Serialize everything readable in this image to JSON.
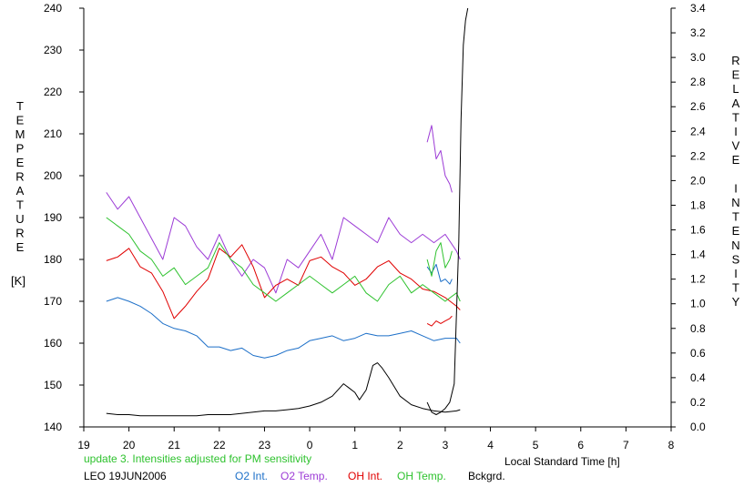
{
  "chart_data": {
    "type": "line",
    "title": "",
    "xlabel": "Local Standard Time [h]",
    "ylabel_left": "TEMPERATURE [K]",
    "ylabel_right": "RELATIVE INTENSITY",
    "ylabel_left_letters": [
      "T",
      "E",
      "M",
      "P",
      "E",
      "R",
      "A",
      "T",
      "U",
      "R",
      "E"
    ],
    "ylabel_left_unit": "[K]",
    "ylabel_right_letters": [
      "R",
      "E",
      "L",
      "A",
      "T",
      "I",
      "V",
      "E",
      "",
      "I",
      "N",
      "T",
      "E",
      "N",
      "S",
      "I",
      "T",
      "Y"
    ],
    "xlim": [
      19,
      32
    ],
    "ylim_left": [
      140,
      240
    ],
    "ylim_right": [
      0,
      3.4
    ],
    "x_tick_labels": [
      "19",
      "20",
      "21",
      "22",
      "23",
      "0",
      "1",
      "2",
      "3",
      "4",
      "5",
      "6",
      "7",
      "8"
    ],
    "y_left_ticks": [
      140,
      150,
      160,
      170,
      180,
      190,
      200,
      210,
      220,
      230,
      240
    ],
    "y_right_ticks": [
      "0.0",
      "0.2",
      "0.4",
      "0.6",
      "0.8",
      "1.0",
      "1.2",
      "1.4",
      "1.6",
      "1.8",
      "2.0",
      "2.2",
      "2.4",
      "2.6",
      "2.8",
      "3.0",
      "3.2",
      "3.4"
    ],
    "grid": false,
    "legend_position": "bottom",
    "note": "update 3. Intensities adjusted for PM sensitivity",
    "station_label": "LEO 19JUN2006",
    "colors": {
      "o2_int": "#1c6fc8",
      "o2_temp": "#9c3bd6",
      "oh_int": "#e00000",
      "oh_temp": "#2ec22e",
      "bckgrd": "#000000",
      "note": "#2ec22e"
    },
    "series": [
      {
        "name": "O2 Int.",
        "axis": "right",
        "segments": [
          {
            "x": [
              19.5,
              19.75,
              20.0,
              20.25,
              20.5,
              20.75,
              21.0,
              21.25,
              21.5,
              21.75,
              22.0,
              22.25,
              22.5,
              22.75,
              23.0,
              23.25,
              23.5,
              23.75,
              24.0,
              24.25,
              24.5,
              24.75,
              25.0,
              25.25,
              25.5,
              25.75,
              26.0,
              26.25,
              26.5,
              26.75,
              27.0,
              27.25,
              27.33
            ],
            "y": [
              1.02,
              1.05,
              1.02,
              0.98,
              0.92,
              0.84,
              0.8,
              0.78,
              0.74,
              0.65,
              0.65,
              0.62,
              0.64,
              0.58,
              0.56,
              0.58,
              0.62,
              0.64,
              0.7,
              0.72,
              0.74,
              0.7,
              0.72,
              0.76,
              0.74,
              0.74,
              0.76,
              0.78,
              0.74,
              0.7,
              0.72,
              0.72,
              0.68
            ]
          },
          {
            "x": [
              26.6,
              26.7,
              26.8,
              26.9,
              27.0,
              27.1,
              27.15
            ],
            "y": [
              1.3,
              1.25,
              1.32,
              1.18,
              1.2,
              1.16,
              1.2
            ]
          }
        ]
      },
      {
        "name": "O2 Temp.",
        "axis": "left",
        "segments": [
          {
            "x": [
              19.5,
              19.75,
              20.0,
              20.25,
              20.5,
              20.75,
              21.0,
              21.25,
              21.5,
              21.75,
              22.0,
              22.25,
              22.5,
              22.75,
              23.0,
              23.25,
              23.5,
              23.75,
              24.0,
              24.25,
              24.5,
              24.75,
              25.0,
              25.25,
              25.5,
              25.75,
              26.0,
              26.25,
              26.5,
              26.75,
              27.0,
              27.25,
              27.33
            ],
            "y": [
              196,
              192,
              195,
              190,
              185,
              180,
              190,
              188,
              183,
              180,
              186,
              180,
              176,
              180,
              178,
              172,
              180,
              178,
              182,
              186,
              180,
              190,
              188,
              186,
              184,
              190,
              186,
              184,
              186,
              184,
              186,
              182,
              180
            ]
          },
          {
            "x": [
              26.6,
              26.7,
              26.8,
              26.9,
              27.0,
              27.1,
              27.15
            ],
            "y": [
              208,
              212,
              204,
              206,
              200,
              198,
              196
            ]
          }
        ]
      },
      {
        "name": "OH Int.",
        "axis": "right",
        "segments": [
          {
            "x": [
              19.5,
              19.75,
              20.0,
              20.25,
              20.5,
              20.75,
              21.0,
              21.25,
              21.5,
              21.75,
              22.0,
              22.25,
              22.5,
              22.75,
              23.0,
              23.25,
              23.5,
              23.75,
              24.0,
              24.25,
              24.5,
              24.75,
              25.0,
              25.25,
              25.5,
              25.75,
              26.0,
              26.25,
              26.5,
              26.75,
              27.0,
              27.25,
              27.33
            ],
            "y": [
              1.35,
              1.38,
              1.45,
              1.3,
              1.25,
              1.1,
              0.88,
              0.98,
              1.1,
              1.2,
              1.45,
              1.38,
              1.48,
              1.3,
              1.05,
              1.15,
              1.2,
              1.15,
              1.35,
              1.38,
              1.3,
              1.25,
              1.15,
              1.2,
              1.3,
              1.35,
              1.25,
              1.2,
              1.12,
              1.1,
              1.05,
              0.98,
              0.95
            ]
          },
          {
            "x": [
              26.6,
              26.7,
              26.8,
              26.9,
              27.0,
              27.1,
              27.15
            ],
            "y": [
              0.84,
              0.82,
              0.86,
              0.84,
              0.86,
              0.88,
              0.9
            ]
          }
        ]
      },
      {
        "name": "OH Temp.",
        "axis": "left",
        "segments": [
          {
            "x": [
              19.5,
              19.75,
              20.0,
              20.25,
              20.5,
              20.75,
              21.0,
              21.25,
              21.5,
              21.75,
              22.0,
              22.25,
              22.5,
              22.75,
              23.0,
              23.25,
              23.5,
              23.75,
              24.0,
              24.25,
              24.5,
              24.75,
              25.0,
              25.25,
              25.5,
              25.75,
              26.0,
              26.25,
              26.5,
              26.75,
              27.0,
              27.25,
              27.33
            ],
            "y": [
              190,
              188,
              186,
              182,
              180,
              176,
              178,
              174,
              176,
              178,
              184,
              180,
              178,
              174,
              172,
              170,
              172,
              174,
              176,
              174,
              172,
              174,
              176,
              172,
              170,
              174,
              176,
              172,
              174,
              172,
              170,
              172,
              170
            ]
          },
          {
            "x": [
              26.6,
              26.7,
              26.8,
              26.9,
              27.0,
              27.1,
              27.15
            ],
            "y": [
              180,
              176,
              182,
              184,
              178,
              180,
              182
            ]
          }
        ]
      },
      {
        "name": "Bckgrd.",
        "axis": "right",
        "segments": [
          {
            "x": [
              19.5,
              19.75,
              20.0,
              20.25,
              20.5,
              20.75,
              21.0,
              21.25,
              21.5,
              21.75,
              22.0,
              22.25,
              22.5,
              22.75,
              23.0,
              23.25,
              23.5,
              23.75,
              24.0,
              24.25,
              24.5,
              24.75,
              25.0,
              25.1,
              25.25,
              25.4,
              25.5,
              25.6,
              25.75,
              26.0,
              26.25,
              26.5,
              26.75,
              27.0,
              27.25,
              27.33
            ],
            "y": [
              0.11,
              0.1,
              0.1,
              0.09,
              0.09,
              0.09,
              0.09,
              0.09,
              0.09,
              0.1,
              0.1,
              0.1,
              0.11,
              0.12,
              0.13,
              0.13,
              0.14,
              0.15,
              0.17,
              0.2,
              0.25,
              0.35,
              0.28,
              0.22,
              0.3,
              0.5,
              0.52,
              0.48,
              0.4,
              0.25,
              0.18,
              0.15,
              0.13,
              0.12,
              0.13,
              0.14
            ]
          },
          {
            "x": [
              26.6,
              26.7,
              26.8,
              26.9,
              27.0,
              27.1,
              27.2,
              27.3,
              27.35,
              27.4,
              27.45,
              27.5
            ],
            "y": [
              0.2,
              0.12,
              0.1,
              0.12,
              0.15,
              0.2,
              0.35,
              1.5,
              2.5,
              3.1,
              3.3,
              3.4
            ]
          }
        ]
      }
    ]
  }
}
